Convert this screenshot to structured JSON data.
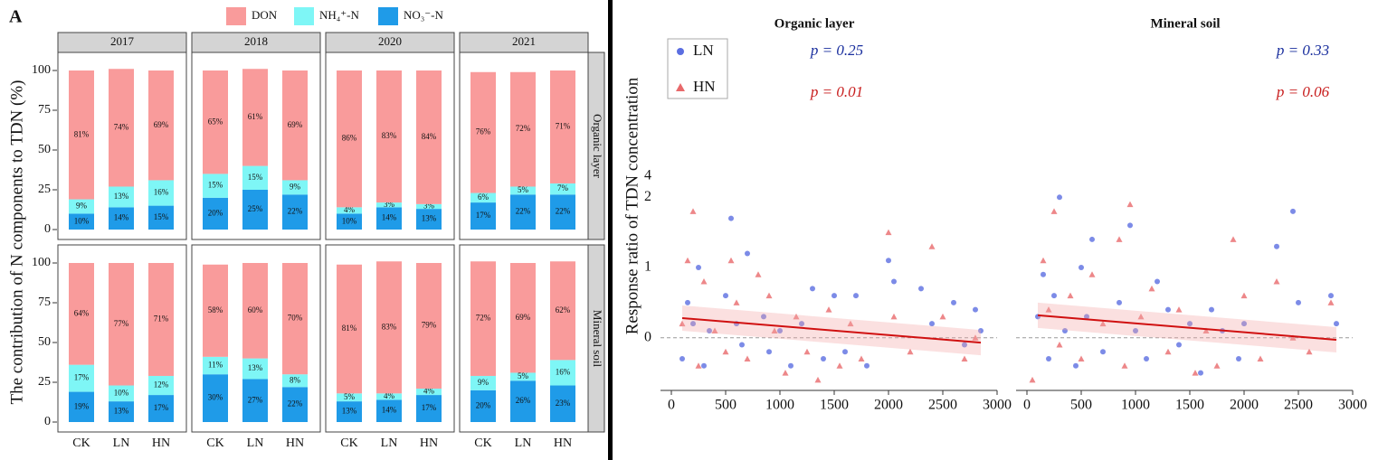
{
  "chart_data": [
    {
      "type": "bar",
      "label": "A",
      "ylabel": "The contribution of N components to TDN (%)",
      "columns": [
        "2017",
        "2018",
        "2020",
        "2021"
      ],
      "rows": [
        "Organic layer",
        "Mineral soil"
      ],
      "categories": [
        "CK",
        "LN",
        "HN"
      ],
      "legend": [
        {
          "name": "DON",
          "color": "#f99b9b"
        },
        {
          "name": "NH₄⁺-N",
          "color": "#7ef6f6"
        },
        {
          "name": "NO₃⁻-N",
          "color": "#1f9be8"
        }
      ],
      "ylim": [
        0,
        100
      ],
      "yticks": [
        0,
        25,
        50,
        75,
        100
      ],
      "panels": [
        [
          {
            "series": [
              {
                "values": [
                  81,
                  74,
                  69
                ],
                "value_labels": [
                  "81%",
                  "74%",
                  "69%"
                ]
              },
              {
                "values": [
                  9,
                  13,
                  16
                ],
                "value_labels": [
                  "9%",
                  "13%",
                  "16%"
                ]
              },
              {
                "values": [
                  10,
                  14,
                  15
                ],
                "value_labels": [
                  "10%",
                  "14%",
                  "15%"
                ]
              }
            ]
          },
          {
            "series": [
              {
                "values": [
                  65,
                  61,
                  69
                ],
                "value_labels": [
                  "65%",
                  "61%",
                  "69%"
                ]
              },
              {
                "values": [
                  15,
                  15,
                  9
                ],
                "value_labels": [
                  "15%",
                  "15%",
                  "9%"
                ]
              },
              {
                "values": [
                  20,
                  25,
                  22
                ],
                "value_labels": [
                  "20%",
                  "25%",
                  "22%"
                ]
              }
            ]
          },
          {
            "series": [
              {
                "values": [
                  86,
                  83,
                  84
                ],
                "value_labels": [
                  "86%",
                  "83%",
                  "84%"
                ]
              },
              {
                "values": [
                  4,
                  3,
                  3
                ],
                "value_labels": [
                  "4%",
                  "3%",
                  "3%"
                ]
              },
              {
                "values": [
                  10,
                  14,
                  13
                ],
                "value_labels": [
                  "10%",
                  "14%",
                  "13%"
                ]
              }
            ]
          },
          {
            "series": [
              {
                "values": [
                  76,
                  72,
                  71
                ],
                "value_labels": [
                  "76%",
                  "72%",
                  "71%"
                ]
              },
              {
                "values": [
                  6,
                  5,
                  7
                ],
                "value_labels": [
                  "6%",
                  "5%",
                  "7%"
                ]
              },
              {
                "values": [
                  17,
                  22,
                  22
                ],
                "value_labels": [
                  "17%",
                  "22%",
                  "22%"
                ]
              }
            ]
          }
        ],
        [
          {
            "series": [
              {
                "values": [
                  64,
                  77,
                  71
                ],
                "value_labels": [
                  "64%",
                  "77%",
                  "71%"
                ]
              },
              {
                "values": [
                  17,
                  10,
                  12
                ],
                "value_labels": [
                  "17%",
                  "10%",
                  "12%"
                ]
              },
              {
                "values": [
                  19,
                  13,
                  17
                ],
                "value_labels": [
                  "19%",
                  "13%",
                  "17%"
                ]
              }
            ]
          },
          {
            "series": [
              {
                "values": [
                  58,
                  60,
                  70
                ],
                "value_labels": [
                  "58%",
                  "60%",
                  "70%"
                ]
              },
              {
                "values": [
                  11,
                  13,
                  8
                ],
                "value_labels": [
                  "11%",
                  "13%",
                  "8%"
                ]
              },
              {
                "values": [
                  30,
                  27,
                  22
                ],
                "value_labels": [
                  "30%",
                  "27%",
                  "22%"
                ]
              }
            ]
          },
          {
            "series": [
              {
                "values": [
                  81,
                  83,
                  79
                ],
                "value_labels": [
                  "81%",
                  "83%",
                  "79%"
                ]
              },
              {
                "values": [
                  5,
                  4,
                  4
                ],
                "value_labels": [
                  "5%",
                  "4%",
                  "4%"
                ]
              },
              {
                "values": [
                  13,
                  14,
                  17
                ],
                "value_labels": [
                  "13%",
                  "14%",
                  "17%"
                ]
              }
            ]
          },
          {
            "series": [
              {
                "values": [
                  72,
                  69,
                  62
                ],
                "value_labels": [
                  "72%",
                  "69%",
                  "62%"
                ]
              },
              {
                "values": [
                  9,
                  5,
                  16
                ],
                "value_labels": [
                  "9%",
                  "5%",
                  "16%"
                ]
              },
              {
                "values": [
                  20,
                  26,
                  23
                ],
                "value_labels": [
                  "20%",
                  "26%",
                  "23%"
                ]
              }
            ]
          }
        ]
      ]
    },
    {
      "type": "scatter",
      "ylabel": "Response ratio of TDN concentration",
      "xlim": [
        -100,
        3000
      ],
      "xticks": [
        0,
        500,
        1000,
        1500,
        2000,
        2500,
        3000
      ],
      "ylim": [
        -0.75,
        2.3
      ],
      "yticks": [
        0,
        1,
        2
      ],
      "axis_break_label": "4",
      "reference_line": 0,
      "legend": [
        {
          "name": "LN",
          "color": "#5b6ee1",
          "marker": "circle"
        },
        {
          "name": "HN",
          "color": "#e8696b",
          "marker": "triangle"
        }
      ],
      "panels": [
        {
          "title": "Organic layer",
          "annotations": [
            {
              "text": "p = 0.25",
              "color": "#1a2f9e"
            },
            {
              "text": "p = 0.01",
              "color": "#c81e1e"
            }
          ],
          "series": [
            {
              "x": [
                100,
                150,
                200,
                250,
                300,
                350,
                500,
                550,
                600,
                650,
                700,
                850,
                900,
                1000,
                1100,
                1200,
                1300,
                1400,
                1500,
                1600,
                1700,
                1800,
                2000,
                2050,
                2300,
                2400,
                2600,
                2700,
                2800,
                2850
              ],
              "y": [
                -0.3,
                0.5,
                0.2,
                1.0,
                -0.4,
                0.1,
                0.6,
                1.7,
                0.2,
                -0.1,
                1.2,
                0.3,
                -0.2,
                0.1,
                -0.4,
                0.2,
                0.7,
                -0.3,
                0.6,
                -0.2,
                0.6,
                -0.4,
                1.1,
                0.8,
                0.7,
                0.2,
                0.5,
                -0.1,
                0.4,
                0.1
              ]
            },
            {
              "x": [
                100,
                150,
                200,
                250,
                300,
                400,
                500,
                550,
                600,
                700,
                800,
                900,
                950,
                1050,
                1150,
                1250,
                1350,
                1450,
                1550,
                1650,
                1750,
                2000,
                2050,
                2200,
                2400,
                2500,
                2700,
                2800
              ],
              "y": [
                0.2,
                1.1,
                1.8,
                -0.4,
                0.8,
                0.1,
                -0.2,
                1.1,
                0.5,
                -0.3,
                0.9,
                0.6,
                0.1,
                -0.5,
                0.3,
                -0.2,
                -0.6,
                0.4,
                -0.4,
                0.2,
                -0.3,
                1.5,
                0.3,
                -0.2,
                1.3,
                0.3,
                -0.3,
                0.0
              ]
            }
          ],
          "trend": {
            "x": [
              100,
              2850
            ],
            "y": [
              0.28,
              -0.07
            ]
          }
        },
        {
          "title": "Mineral soil",
          "annotations": [
            {
              "text": "p = 0.33",
              "color": "#1a2f9e"
            },
            {
              "text": "p = 0.06",
              "color": "#c81e1e"
            }
          ],
          "series": [
            {
              "x": [
                100,
                150,
                200,
                250,
                300,
                350,
                450,
                500,
                550,
                600,
                700,
                850,
                950,
                1000,
                1100,
                1200,
                1300,
                1400,
                1500,
                1600,
                1700,
                1800,
                1950,
                2000,
                2300,
                2450,
                2500,
                2800,
                2850
              ],
              "y": [
                0.3,
                0.9,
                -0.3,
                0.6,
                2.0,
                0.1,
                -0.4,
                1.0,
                0.3,
                1.4,
                -0.2,
                0.5,
                1.6,
                0.1,
                -0.3,
                0.8,
                0.4,
                -0.1,
                0.2,
                -0.5,
                0.4,
                0.1,
                -0.3,
                0.2,
                1.3,
                1.8,
                0.5,
                0.6,
                0.2
              ]
            },
            {
              "x": [
                50,
                150,
                200,
                250,
                300,
                400,
                500,
                600,
                700,
                850,
                900,
                950,
                1050,
                1150,
                1300,
                1400,
                1550,
                1650,
                1750,
                1900,
                2000,
                2150,
                2300,
                2450,
                2600,
                2800
              ],
              "y": [
                -0.6,
                1.1,
                0.4,
                1.8,
                -0.1,
                0.6,
                -0.3,
                0.9,
                0.2,
                1.4,
                -0.4,
                1.9,
                0.3,
                0.7,
                -0.2,
                0.4,
                -0.5,
                0.1,
                -0.4,
                1.4,
                0.6,
                -0.3,
                0.8,
                0.0,
                -0.2,
                0.5
              ]
            }
          ],
          "trend": {
            "x": [
              100,
              2850
            ],
            "y": [
              0.32,
              -0.03
            ]
          }
        }
      ]
    }
  ]
}
